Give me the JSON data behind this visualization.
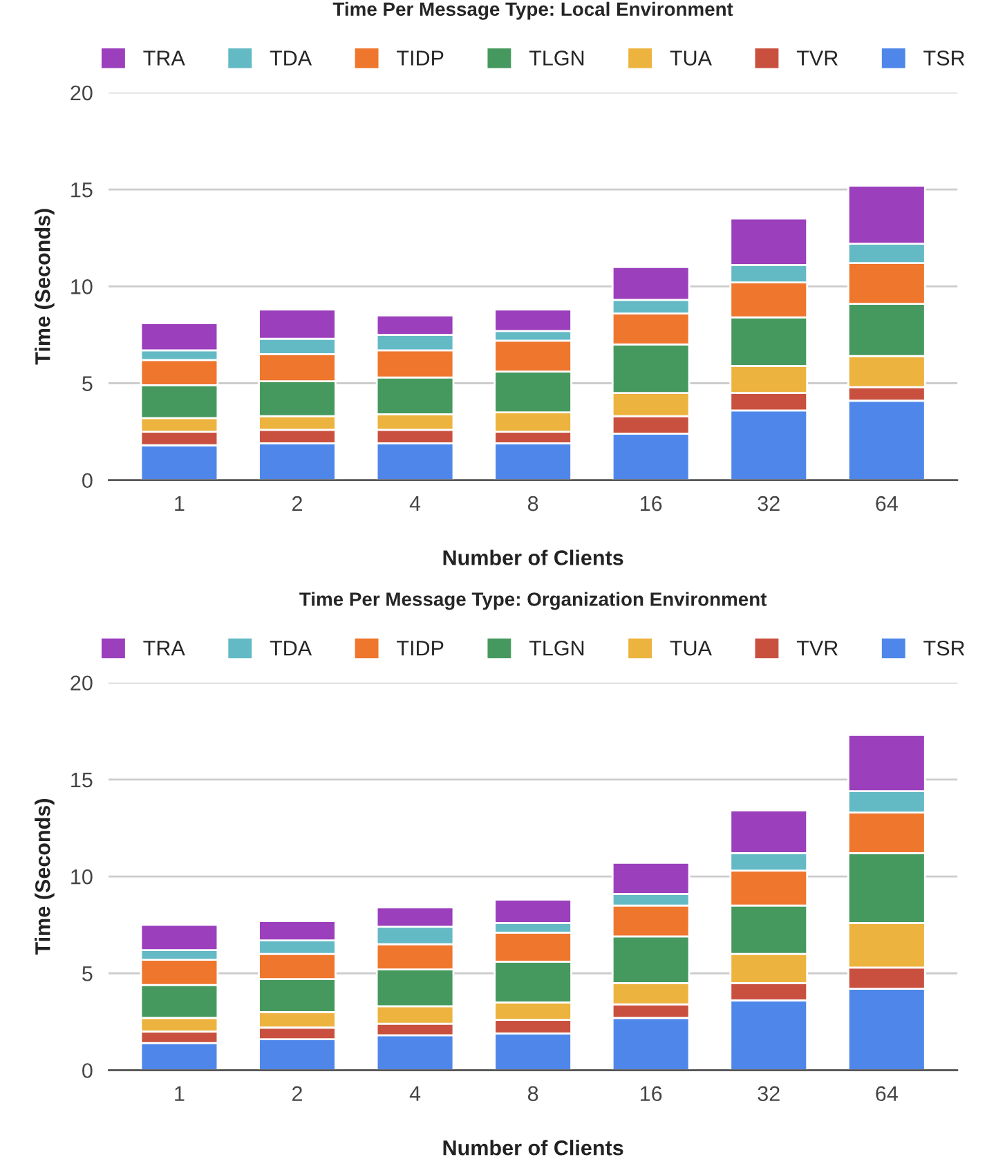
{
  "chart_data": [
    {
      "type": "bar",
      "stacked": true,
      "title": "Time Per Message Type: Local Environment",
      "xlabel": "Number of Clients",
      "ylabel": "Time (Seconds)",
      "categories": [
        "1",
        "2",
        "4",
        "8",
        "16",
        "32",
        "64"
      ],
      "ylim": [
        0,
        20
      ],
      "yticks": [
        0,
        5,
        10,
        15,
        20
      ],
      "grid": "y",
      "legend": "top",
      "series": [
        {
          "name": "TSR",
          "color": "#4e87e9",
          "values": [
            1.8,
            1.9,
            1.9,
            1.9,
            2.4,
            3.6,
            4.1
          ]
        },
        {
          "name": "TVR",
          "color": "#c9503f",
          "values": [
            0.7,
            0.7,
            0.7,
            0.6,
            0.9,
            0.9,
            0.7
          ]
        },
        {
          "name": "TUA",
          "color": "#ecb33f",
          "values": [
            0.7,
            0.7,
            0.8,
            1.0,
            1.2,
            1.4,
            1.6
          ]
        },
        {
          "name": "TLGN",
          "color": "#46995e",
          "values": [
            1.7,
            1.8,
            1.9,
            2.1,
            2.5,
            2.5,
            2.7
          ]
        },
        {
          "name": "TIDP",
          "color": "#ee762d",
          "values": [
            1.3,
            1.4,
            1.4,
            1.6,
            1.6,
            1.8,
            2.1
          ]
        },
        {
          "name": "TDA",
          "color": "#63b9c4",
          "values": [
            0.5,
            0.8,
            0.8,
            0.5,
            0.7,
            0.9,
            1.0
          ]
        },
        {
          "name": "TRA",
          "color": "#9b3fbc",
          "values": [
            1.4,
            1.5,
            1.0,
            1.1,
            1.7,
            2.4,
            3.0
          ]
        }
      ]
    },
    {
      "type": "bar",
      "stacked": true,
      "title": "Time Per Message Type: Organization Environment",
      "xlabel": "Number of Clients",
      "ylabel": "Time (Seconds)",
      "categories": [
        "1",
        "2",
        "4",
        "8",
        "16",
        "32",
        "64"
      ],
      "ylim": [
        0,
        20
      ],
      "yticks": [
        0,
        5,
        10,
        15,
        20
      ],
      "grid": "y",
      "legend": "top",
      "series": [
        {
          "name": "TSR",
          "color": "#4e87e9",
          "values": [
            1.4,
            1.6,
            1.8,
            1.9,
            2.7,
            3.6,
            4.2
          ]
        },
        {
          "name": "TVR",
          "color": "#c9503f",
          "values": [
            0.6,
            0.6,
            0.6,
            0.7,
            0.7,
            0.9,
            1.1
          ]
        },
        {
          "name": "TUA",
          "color": "#ecb33f",
          "values": [
            0.7,
            0.8,
            0.9,
            0.9,
            1.1,
            1.5,
            2.3
          ]
        },
        {
          "name": "TLGN",
          "color": "#46995e",
          "values": [
            1.7,
            1.7,
            1.9,
            2.1,
            2.4,
            2.5,
            3.6
          ]
        },
        {
          "name": "TIDP",
          "color": "#ee762d",
          "values": [
            1.3,
            1.3,
            1.3,
            1.5,
            1.6,
            1.8,
            2.1
          ]
        },
        {
          "name": "TDA",
          "color": "#63b9c4",
          "values": [
            0.5,
            0.7,
            0.9,
            0.5,
            0.6,
            0.9,
            1.1
          ]
        },
        {
          "name": "TRA",
          "color": "#9b3fbc",
          "values": [
            1.3,
            1.0,
            1.0,
            1.2,
            1.6,
            2.2,
            2.9
          ]
        }
      ]
    }
  ]
}
